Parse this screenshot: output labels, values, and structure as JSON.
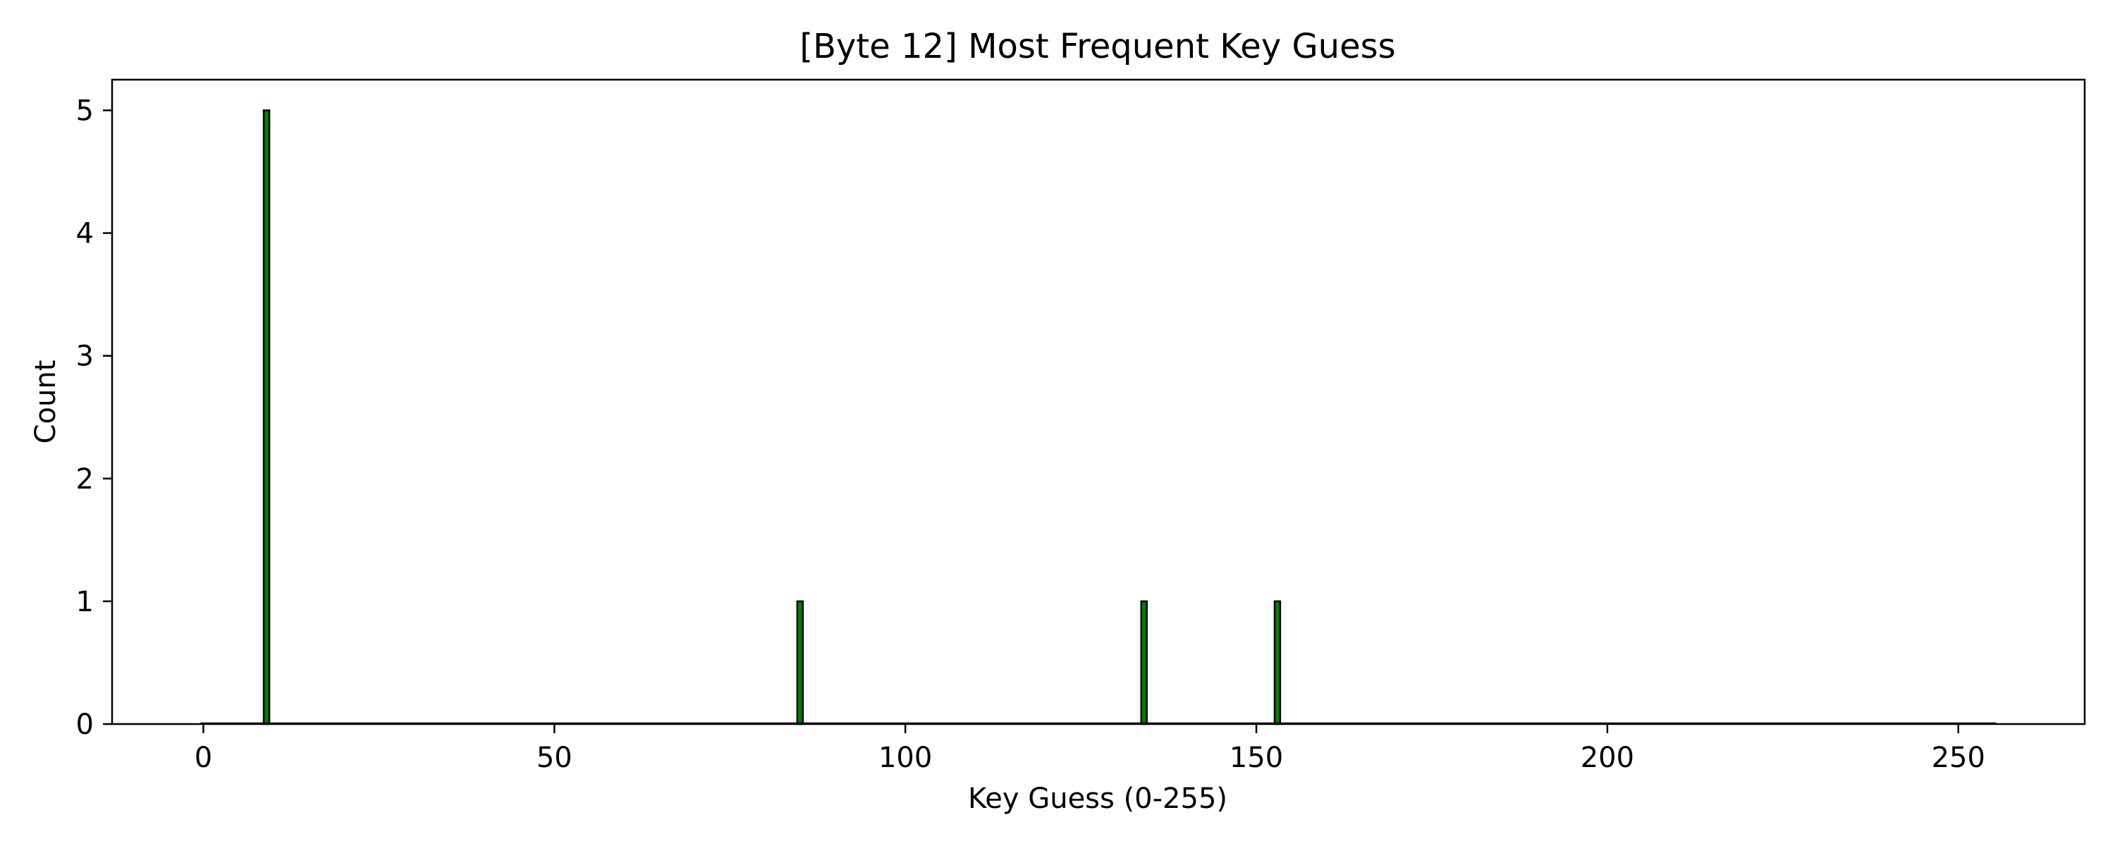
{
  "chart_data": {
    "type": "bar",
    "title": "[Byte 12] Most Frequent Key Guess",
    "xlabel": "Key Guess (0-255)",
    "ylabel": "Count",
    "xlim": [
      -13,
      268
    ],
    "ylim": [
      0,
      5.25
    ],
    "xticks": [
      0,
      50,
      100,
      150,
      200,
      250
    ],
    "yticks": [
      0,
      1,
      2,
      3,
      4,
      5
    ],
    "x_range": [
      0,
      255
    ],
    "bars": [
      {
        "x": 9,
        "value": 5
      },
      {
        "x": 85,
        "value": 1
      },
      {
        "x": 134,
        "value": 1
      },
      {
        "x": 153,
        "value": 1
      }
    ],
    "bar_color": "#008000",
    "bar_edge_color": "#000000",
    "grid": false,
    "legend": "none"
  }
}
